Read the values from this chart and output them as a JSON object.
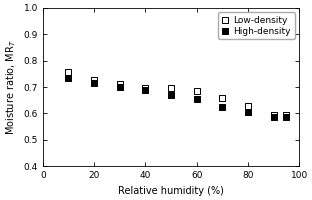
{
  "x": [
    10,
    20,
    30,
    40,
    50,
    60,
    70,
    80,
    90,
    95
  ],
  "low_density": [
    0.755,
    0.725,
    0.71,
    0.695,
    0.695,
    0.685,
    0.66,
    0.63,
    0.595,
    0.595
  ],
  "high_density": [
    0.735,
    0.715,
    0.7,
    0.69,
    0.67,
    0.655,
    0.625,
    0.605,
    0.585,
    0.585
  ],
  "xlabel": "Relative humidity (%)",
  "ylabel": "Moisture ratio, MR$_T$",
  "legend_low": "Low-density",
  "legend_high": "High-density",
  "xlim": [
    0,
    100
  ],
  "ylim": [
    0.4,
    1.0
  ],
  "yticks": [
    0.4,
    0.5,
    0.6,
    0.7,
    0.8,
    0.9,
    1.0
  ],
  "xticks": [
    0,
    20,
    40,
    60,
    80,
    100
  ],
  "marker_size": 22,
  "low_marker": "s",
  "high_marker": "s",
  "low_color": "white",
  "high_color": "black",
  "edge_color": "black",
  "bg_color": "white",
  "tick_fontsize": 6.5,
  "label_fontsize": 7,
  "legend_fontsize": 6.5
}
